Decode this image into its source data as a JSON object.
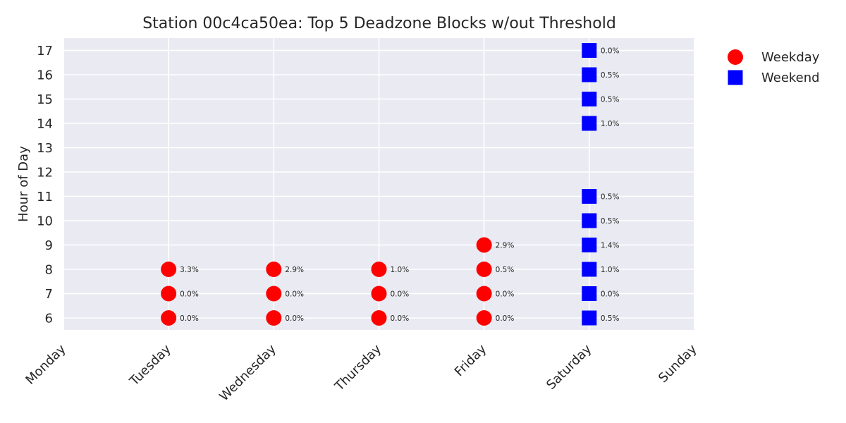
{
  "chart_data": {
    "type": "scatter",
    "title": "Station 00c4ca50ea: Top 5 Deadzone Blocks w/out Threshold",
    "xlabel": "",
    "ylabel": "Hour of Day",
    "x_categories": [
      "Monday",
      "Tuesday",
      "Wednesday",
      "Thursday",
      "Friday",
      "Saturday",
      "Sunday"
    ],
    "y_ticks": [
      6,
      7,
      8,
      9,
      10,
      11,
      12,
      13,
      14,
      15,
      16,
      17
    ],
    "ylim": [
      5.5,
      17.5
    ],
    "grid": true,
    "legend_position": "top-right outside",
    "series": [
      {
        "name": "Weekday",
        "marker": "circle",
        "color": "#ff0000",
        "points": [
          {
            "day": "Tuesday",
            "hour": 6,
            "label": "0.0%"
          },
          {
            "day": "Tuesday",
            "hour": 7,
            "label": "0.0%"
          },
          {
            "day": "Tuesday",
            "hour": 8,
            "label": "3.3%"
          },
          {
            "day": "Wednesday",
            "hour": 6,
            "label": "0.0%"
          },
          {
            "day": "Wednesday",
            "hour": 7,
            "label": "0.0%"
          },
          {
            "day": "Wednesday",
            "hour": 8,
            "label": "2.9%"
          },
          {
            "day": "Thursday",
            "hour": 6,
            "label": "0.0%"
          },
          {
            "day": "Thursday",
            "hour": 7,
            "label": "0.0%"
          },
          {
            "day": "Thursday",
            "hour": 8,
            "label": "1.0%"
          },
          {
            "day": "Friday",
            "hour": 6,
            "label": "0.0%"
          },
          {
            "day": "Friday",
            "hour": 7,
            "label": "0.0%"
          },
          {
            "day": "Friday",
            "hour": 8,
            "label": "0.5%"
          },
          {
            "day": "Friday",
            "hour": 9,
            "label": "2.9%"
          }
        ]
      },
      {
        "name": "Weekend",
        "marker": "square",
        "color": "#0000ff",
        "points": [
          {
            "day": "Saturday",
            "hour": 6,
            "label": "0.5%"
          },
          {
            "day": "Saturday",
            "hour": 7,
            "label": "0.0%"
          },
          {
            "day": "Saturday",
            "hour": 8,
            "label": "1.0%"
          },
          {
            "day": "Saturday",
            "hour": 9,
            "label": "1.4%"
          },
          {
            "day": "Saturday",
            "hour": 10,
            "label": "0.5%"
          },
          {
            "day": "Saturday",
            "hour": 11,
            "label": "0.5%"
          },
          {
            "day": "Saturday",
            "hour": 14,
            "label": "1.0%"
          },
          {
            "day": "Saturday",
            "hour": 15,
            "label": "0.5%"
          },
          {
            "day": "Saturday",
            "hour": 16,
            "label": "0.5%"
          },
          {
            "day": "Saturday",
            "hour": 17,
            "label": "0.0%"
          }
        ]
      }
    ],
    "colors": {
      "plot_background": "#eaeaf2",
      "grid": "#ffffff",
      "text": "#262626"
    }
  }
}
